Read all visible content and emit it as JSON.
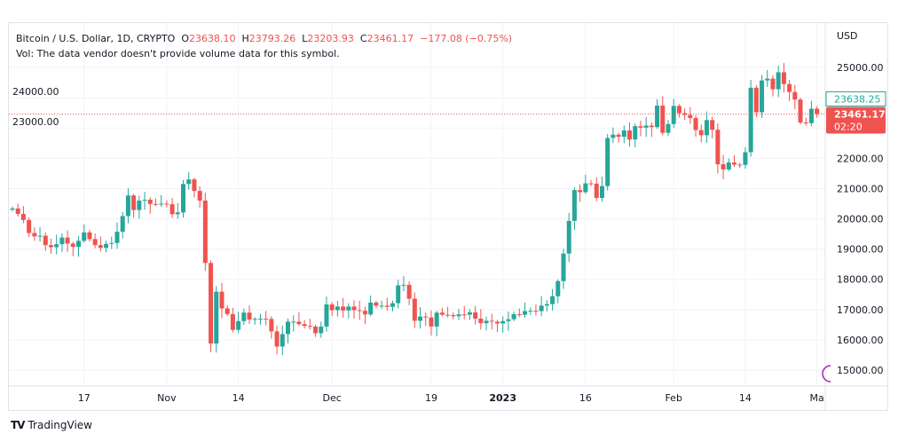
{
  "legend": {
    "symbol": "Bitcoin / U.S. Dollar, 1D, CRYPTO",
    "open_label": "O",
    "open": "23638.10",
    "high_label": "H",
    "high": "23793.26",
    "low_label": "L",
    "low": "23203.93",
    "close_label": "C",
    "close": "23461.17",
    "change": "−177.08 (−0.75%)",
    "volume_note": "Vol: The data vendor doesn't provide volume data for this symbol."
  },
  "price_axis": {
    "currency": "USD",
    "last_price_label": "23461.17",
    "countdown": "02:20",
    "prev_price_label": "23638.25"
  },
  "branding": {
    "logo_text": "TradingView"
  },
  "colors": {
    "up": "#26a69a",
    "down": "#ef5350",
    "grid": "#f0f3fa",
    "text": "#131722"
  },
  "chart_data": {
    "type": "candlestick",
    "title": "Bitcoin / U.S. Dollar, 1D, CRYPTO",
    "first_open": 20300,
    "first_date": "2022-10-04",
    "closes": [
      20340,
      20160,
      19960,
      19530,
      19420,
      19440,
      19130,
      19060,
      19160,
      19380,
      19180,
      19070,
      19270,
      19550,
      19330,
      19130,
      19040,
      19170,
      19200,
      19570,
      20090,
      20770,
      20290,
      20600,
      20630,
      20490,
      20480,
      20500,
      20480,
      20150,
      20210,
      21150,
      21300,
      20920,
      20600,
      18540,
      15880,
      17590,
      17040,
      16850,
      16330,
      16620,
      16900,
      16670,
      16690,
      16700,
      16690,
      16280,
      15780,
      16190,
      16600,
      16600,
      16520,
      16460,
      16440,
      16220,
      16440,
      17170,
      16980,
      17100,
      16970,
      17100,
      16980,
      16960,
      16840,
      17230,
      17130,
      17130,
      17090,
      17210,
      17800,
      17820,
      17360,
      16630,
      16770,
      16740,
      16440,
      16900,
      16830,
      16820,
      16780,
      16840,
      16830,
      16910,
      16700,
      16550,
      16630,
      16600,
      16540,
      16620,
      16680,
      16850,
      16830,
      16950,
      16960,
      16950,
      17130,
      17180,
      17440,
      17940,
      18850,
      19930,
      20950,
      20880,
      21170,
      21160,
      20690,
      21080,
      22670,
      22780,
      22710,
      22920,
      22620,
      23060,
      23010,
      23080,
      23030,
      23740,
      22840,
      23130,
      23730,
      23490,
      23430,
      23330,
      22930,
      22760,
      23260,
      22940,
      21800,
      21630,
      21860,
      21790,
      21780,
      22200,
      24330,
      23520,
      24570,
      24630,
      24280,
      24840,
      24450,
      24190,
      23940,
      23180,
      23160,
      23638,
      23461.17
    ],
    "ylim": [
      14500,
      26200
    ],
    "y_ticks": [
      "25000.00",
      "24000.00",
      "23000.00",
      "22000.00",
      "21000.00",
      "20000.00",
      "19000.00",
      "18000.00",
      "17000.00",
      "16000.00",
      "15000.00"
    ],
    "y_tick_values": [
      25000,
      24000,
      23000,
      22000,
      21000,
      20000,
      19000,
      18000,
      17000,
      16000,
      15000
    ],
    "x_ticks": [
      {
        "label": "17",
        "day": 13
      },
      {
        "label": "Nov",
        "day": 28
      },
      {
        "label": "14",
        "day": 41
      },
      {
        "label": "Dec",
        "day": 58
      },
      {
        "label": "19",
        "day": 76
      },
      {
        "label": "2023",
        "day": 89
      },
      {
        "label": "16",
        "day": 104
      },
      {
        "label": "Feb",
        "day": 120
      },
      {
        "label": "14",
        "day": 133
      },
      {
        "label": "Ma",
        "day": 146
      }
    ]
  }
}
